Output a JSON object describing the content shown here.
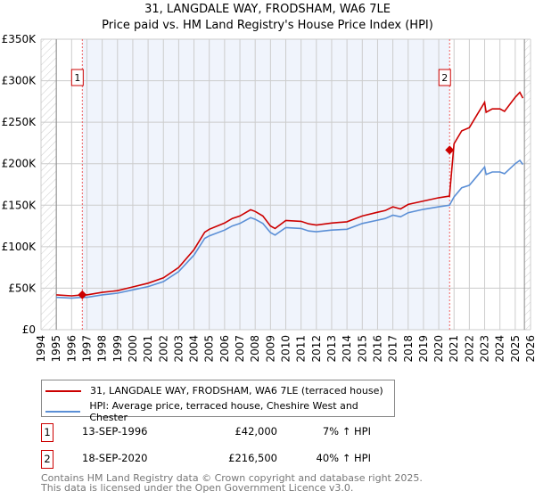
{
  "chart_data": {
    "type": "line",
    "title": "31, LANGDALE WAY, FRODSHAM, WA6 7LE",
    "subtitle": "Price paid vs. HM Land Registry's House Price Index (HPI)",
    "xlim": [
      1994,
      2026
    ],
    "ylim": [
      0,
      350000
    ],
    "x_ticks": [
      "1994",
      "1995",
      "1996",
      "1997",
      "1998",
      "1999",
      "2000",
      "2001",
      "2002",
      "2003",
      "2004",
      "2005",
      "2006",
      "2007",
      "2008",
      "2009",
      "2010",
      "2011",
      "2012",
      "2013",
      "2014",
      "2015",
      "2016",
      "2017",
      "2018",
      "2019",
      "2020",
      "2021",
      "2022",
      "2023",
      "2024",
      "2025",
      "2026"
    ],
    "y_ticks": [
      {
        "v": 0,
        "label": "£0"
      },
      {
        "v": 50000,
        "label": "£50K"
      },
      {
        "v": 100000,
        "label": "£100K"
      },
      {
        "v": 150000,
        "label": "£150K"
      },
      {
        "v": 200000,
        "label": "£200K"
      },
      {
        "v": 250000,
        "label": "£250K"
      },
      {
        "v": 300000,
        "label": "£300K"
      },
      {
        "v": 350000,
        "label": "£350K"
      }
    ],
    "grid": true,
    "x": [
      1995,
      1996,
      1996.7,
      1997,
      1998,
      1999,
      2000,
      2001,
      2002,
      2003,
      2004,
      2004.7,
      2005,
      2006,
      2006.5,
      2007,
      2007.7,
      2008,
      2008.5,
      2009,
      2009.3,
      2010,
      2011,
      2011.5,
      2012,
      2013,
      2014,
      2015,
      2016,
      2016.5,
      2017,
      2017.5,
      2018,
      2019,
      2020,
      2020.7,
      2021,
      2021.5,
      2022,
      2022.5,
      2023,
      2023.1,
      2023.5,
      2024,
      2024.3,
      2025,
      2025.3,
      2025.5
    ],
    "series": [
      {
        "name": "31, LANGDALE WAY, FRODSHAM, WA6 7LE (terraced house)",
        "color": "#cc0000",
        "values": [
          42000,
          40800,
          42000,
          42000,
          45000,
          47000,
          51500,
          56000,
          62500,
          75000,
          96500,
          117500,
          121000,
          128500,
          134000,
          137000,
          144500,
          142500,
          137000,
          125000,
          122000,
          131500,
          130500,
          127500,
          126000,
          128500,
          130000,
          137000,
          141500,
          143500,
          148000,
          145500,
          151000,
          155000,
          159000,
          161000,
          224000,
          239500,
          243500,
          259000,
          274000,
          262000,
          266000,
          266000,
          263000,
          280000,
          286000,
          279000
        ]
      },
      {
        "name": "HPI: Average price, terraced house, Cheshire West and Chester",
        "color": "#5b8fd6",
        "values": [
          39000,
          38000,
          39000,
          39000,
          42000,
          44000,
          48000,
          52000,
          58000,
          70000,
          90000,
          110000,
          113000,
          120000,
          125000,
          128000,
          135000,
          133000,
          128000,
          117000,
          114000,
          123000,
          122000,
          119000,
          118000,
          120000,
          121000,
          128000,
          132000,
          134000,
          138000,
          136000,
          141000,
          145000,
          148000,
          150000,
          160000,
          171000,
          174000,
          185000,
          196000,
          187000,
          190000,
          190000,
          188000,
          200000,
          204000,
          199000
        ]
      }
    ],
    "sales": [
      {
        "id": "1",
        "x": 1996.7,
        "price": 42000,
        "date": "13-SEP-1996",
        "price_label": "£42,000",
        "hpi_label": "7% ↑ HPI"
      },
      {
        "id": "2",
        "x": 2020.71,
        "price": 216500,
        "date": "18-SEP-2020",
        "price_label": "£216,500",
        "hpi_label": "40% ↑ HPI"
      }
    ],
    "hatched_before": 1995,
    "hatched_after": 2025.6,
    "legend_placement": "bottom"
  },
  "footer": {
    "line1": "Contains HM Land Registry data © Crown copyright and database right 2025.",
    "line2": "This data is licensed under the Open Government Licence v3.0."
  }
}
